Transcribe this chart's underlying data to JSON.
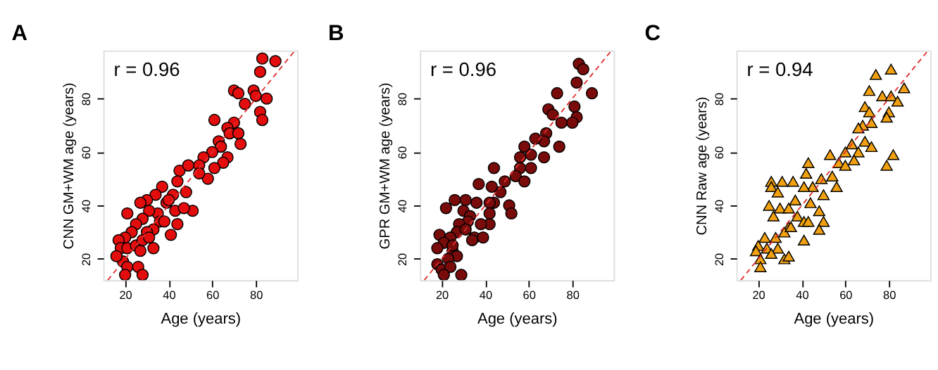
{
  "chart_data": [
    {
      "type": "scatter",
      "title": "A",
      "xlabel": "Age (years)",
      "ylabel": "CNN GM+WM age (years)",
      "xlim": [
        10,
        99
      ],
      "ylim": [
        12,
        98
      ],
      "xticks": [
        20,
        40,
        60,
        80
      ],
      "yticks": [
        20,
        40,
        60,
        80
      ],
      "grid": false,
      "annotations": [
        "r = 0.96"
      ],
      "series": [
        {
          "marker": "circle",
          "color": "#e30d0d",
          "x": [
            83,
            89,
            82,
            70,
            72,
            79,
            80,
            85,
            75,
            82,
            83,
            61,
            70,
            67,
            68,
            72,
            63,
            73,
            64,
            60,
            56,
            67,
            65,
            54,
            61,
            49,
            58,
            54,
            45,
            37,
            44,
            48,
            42,
            34,
            30,
            27,
            39,
            43,
            51,
            47,
            35,
            31,
            21,
            44,
            41,
            36,
            28,
            25,
            33,
            30,
            33,
            23,
            20,
            17,
            18,
            21,
            25,
            27,
            28,
            19,
            21,
            26,
            28,
            20,
            16,
            31,
            38,
            40,
            49
          ],
          "values": [
            95,
            94,
            90,
            83,
            82,
            83,
            81,
            80,
            78,
            75,
            72,
            72,
            71,
            69,
            67,
            67,
            64,
            63,
            62,
            60,
            58,
            58,
            56,
            55,
            54,
            55,
            50,
            52,
            53,
            47,
            49,
            45,
            44,
            44,
            42,
            41,
            41,
            38,
            38,
            39,
            37,
            38,
            37,
            33,
            29,
            34,
            35,
            33,
            31,
            30,
            24,
            30,
            28,
            27,
            24,
            24,
            25,
            23,
            27,
            19,
            17,
            17,
            14,
            14,
            21,
            28,
            34,
            42,
            55
          ]
        },
        {
          "type": "line",
          "line_style": "dashed",
          "color": "#e03030",
          "x": [
            12,
            98
          ],
          "values": [
            12,
            98
          ]
        }
      ]
    },
    {
      "type": "scatter",
      "title": "B",
      "xlabel": "Age (years)",
      "ylabel": "GPR GM+WM age (years)",
      "xlim": [
        10,
        99
      ],
      "ylim": [
        12,
        98
      ],
      "xticks": [
        20,
        40,
        60,
        80
      ],
      "yticks": [
        20,
        40,
        60,
        80
      ],
      "grid": false,
      "annotations": [
        "r = 0.96"
      ],
      "series": [
        {
          "marker": "circle",
          "color": "#7a0b0b",
          "x": [
            83,
            85,
            82,
            89,
            73,
            69,
            71,
            81,
            82,
            80,
            75,
            68,
            67,
            63,
            74,
            58,
            67,
            61,
            56,
            61,
            56,
            54,
            58,
            44,
            49,
            37,
            47,
            43,
            44,
            51,
            52,
            42,
            42,
            42,
            38,
            36,
            31,
            26,
            22,
            30,
            33,
            35,
            32,
            28,
            27,
            24,
            19,
            21,
            18,
            25,
            27,
            23,
            18,
            20,
            24,
            21,
            29,
            25,
            31,
            39,
            34
          ],
          "values": [
            93,
            91,
            86,
            82,
            82,
            76,
            74,
            77,
            73,
            71,
            71,
            67,
            64,
            65,
            62,
            62,
            58,
            59,
            58,
            54,
            54,
            51,
            49,
            54,
            49,
            48,
            45,
            47,
            41,
            40,
            37,
            41,
            33,
            37,
            33,
            41,
            42,
            42,
            39,
            38,
            36,
            28,
            34,
            33,
            30,
            28,
            29,
            26,
            24,
            23,
            21,
            20,
            18,
            16,
            17,
            14,
            14,
            25,
            31,
            28,
            27
          ]
        },
        {
          "type": "line",
          "line_style": "dashed",
          "color": "#e03030",
          "x": [
            12,
            98
          ],
          "values": [
            12,
            98
          ]
        }
      ]
    },
    {
      "type": "scatter",
      "title": "C",
      "xlabel": "Age (years)",
      "ylabel": "CNN Raw age (years)",
      "xlim": [
        10,
        99
      ],
      "ylim": [
        12,
        98
      ],
      "xticks": [
        20,
        40,
        60,
        80
      ],
      "yticks": [
        20,
        40,
        60,
        80
      ],
      "grid": false,
      "annotations": [
        "r = 0.94"
      ],
      "series": [
        {
          "marker": "triangle",
          "color": "#f0a010",
          "x": [
            74,
            81,
            87,
            71,
            77,
            81,
            84,
            69,
            71,
            80,
            79,
            72,
            68,
            66,
            69,
            72,
            63,
            66,
            82,
            79,
            60,
            53,
            57,
            60,
            64,
            43,
            42,
            26,
            31,
            36,
            49,
            54,
            56,
            26,
            45,
            41,
            29,
            50,
            25,
            37,
            44,
            48,
            30,
            34,
            38,
            41,
            43,
            50,
            48,
            41,
            27,
            34,
            32,
            28,
            23,
            20,
            24,
            29,
            19,
            21,
            32,
            34,
            21,
            26,
            35
          ],
          "values": [
            89,
            91,
            84,
            83,
            81,
            81,
            79,
            77,
            75,
            75,
            73,
            71,
            70,
            69,
            64,
            62,
            63,
            60,
            59,
            55,
            60,
            59,
            56,
            55,
            57,
            56,
            52,
            49,
            49,
            49,
            50,
            51,
            47,
            47,
            47,
            47,
            45,
            44,
            40,
            42,
            41,
            38,
            39,
            39,
            36,
            34,
            34,
            34,
            31,
            27,
            36,
            32,
            30,
            28,
            28,
            25,
            24,
            24,
            23,
            20,
            20,
            21,
            17,
            22,
            32
          ]
        },
        {
          "type": "line",
          "line_style": "dashed",
          "color": "#e03030",
          "x": [
            12,
            98
          ],
          "values": [
            12,
            98
          ]
        }
      ]
    }
  ]
}
